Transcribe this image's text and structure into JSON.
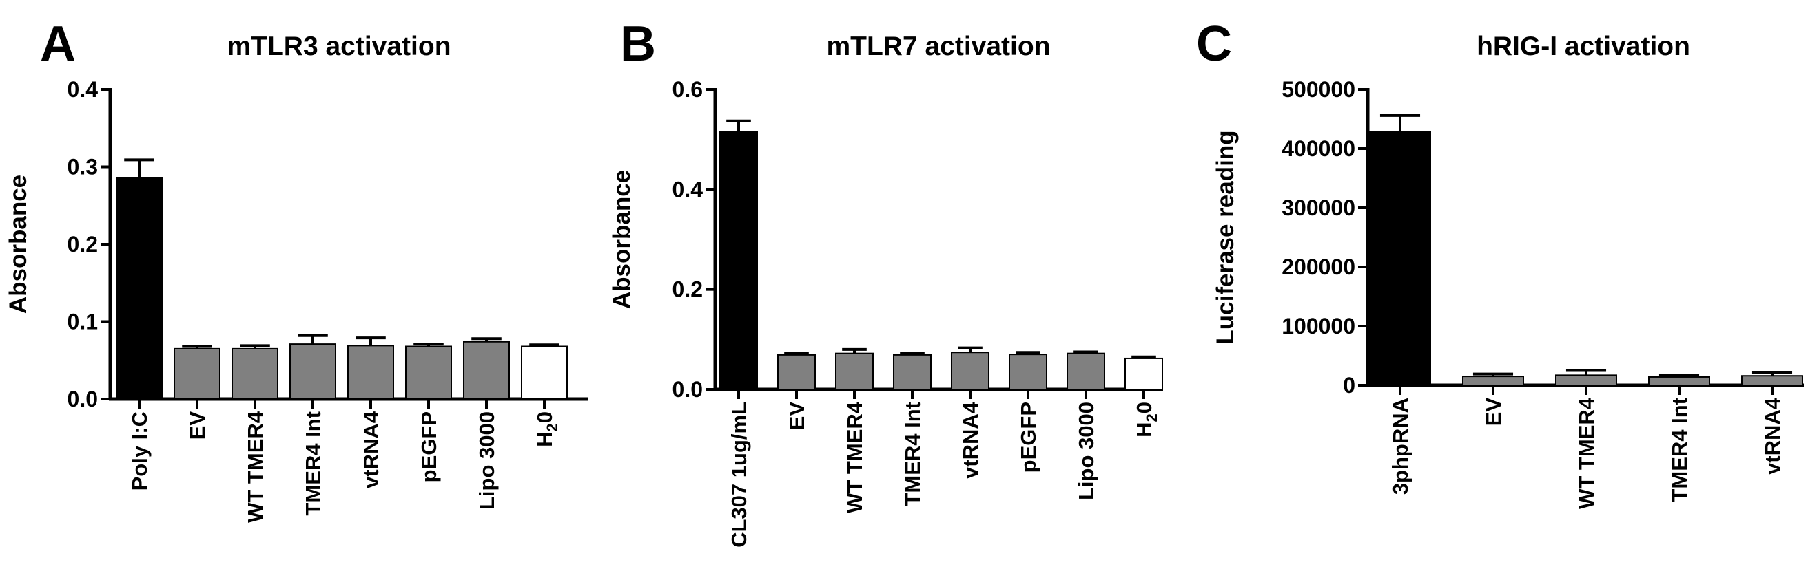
{
  "chart_data": [
    {
      "type": "bar",
      "panel_label": "A",
      "title": "mTLR3 activation",
      "ylabel": "Absorbance",
      "xlabel": "",
      "ylim": [
        0,
        0.4
      ],
      "yticks": [
        "0.0",
        "0.1",
        "0.2",
        "0.3",
        "0.4"
      ],
      "yticks_values": [
        0,
        0.1,
        0.2,
        0.3,
        0.4
      ],
      "categories": [
        "Poly I:C",
        "EV",
        "WT TMER4",
        "TMER4 Int",
        "vtRNA4",
        "pEGFP",
        "Lipo 3000",
        "H20"
      ],
      "values": [
        0.286,
        0.065,
        0.065,
        0.071,
        0.069,
        0.068,
        0.074,
        0.068
      ],
      "errors": [
        0.023,
        0.003,
        0.004,
        0.011,
        0.01,
        0.003,
        0.004,
        0.002
      ],
      "colors": [
        "#000000",
        "#808080",
        "#808080",
        "#808080",
        "#808080",
        "#808080",
        "#808080",
        "#ffffff"
      ]
    },
    {
      "type": "bar",
      "panel_label": "B",
      "title": "mTLR7 activation",
      "ylabel": "Absorbance",
      "xlabel": "",
      "ylim": [
        0,
        0.6
      ],
      "yticks": [
        "0.0",
        "0.2",
        "0.4",
        "0.6"
      ],
      "yticks_values": [
        0,
        0.2,
        0.4,
        0.6
      ],
      "categories": [
        "CL307 1ug/mL",
        "EV",
        "WT TMER4",
        "TMER4 Int",
        "vtRNA4",
        "pEGFP",
        "Lipo 3000",
        "H20"
      ],
      "values": [
        0.515,
        0.069,
        0.072,
        0.069,
        0.074,
        0.07,
        0.072,
        0.062
      ],
      "errors": [
        0.022,
        0.004,
        0.008,
        0.004,
        0.009,
        0.004,
        0.003,
        0.003
      ],
      "colors": [
        "#000000",
        "#808080",
        "#808080",
        "#808080",
        "#808080",
        "#808080",
        "#808080",
        "#ffffff"
      ]
    },
    {
      "type": "bar",
      "panel_label": "C",
      "title": "hRIG-I activation",
      "ylabel": "Luciferase reading",
      "xlabel": "",
      "ylim": [
        0,
        500000
      ],
      "yticks": [
        "0",
        "100000",
        "200000",
        "300000",
        "400000",
        "500000"
      ],
      "yticks_values": [
        0,
        100000,
        200000,
        300000,
        400000,
        500000
      ],
      "categories": [
        "3phpRNA",
        "EV",
        "WT TMER4",
        "TMER4 Int",
        "vtRNA4"
      ],
      "values": [
        428000,
        15000,
        17000,
        14000,
        16000
      ],
      "errors": [
        28000,
        4000,
        8000,
        3000,
        5000
      ],
      "colors": [
        "#000000",
        "#808080",
        "#808080",
        "#808080",
        "#808080"
      ]
    }
  ]
}
